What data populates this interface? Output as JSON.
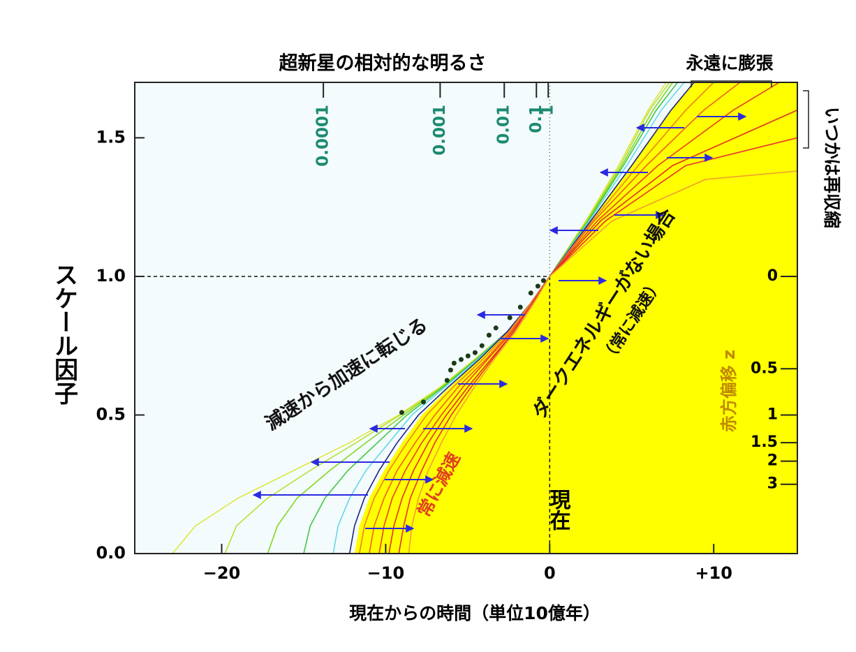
{
  "chart_data": {
    "type": "line",
    "title": "超新星の相対的な明るさ",
    "x_label": "現在からの時間（単位10億年）",
    "y_label": "スケール因子",
    "y2_label": "赤方偏移 z",
    "xlim": [
      -25.3,
      15.1
    ],
    "ylim": [
      0,
      1.7
    ],
    "xticks": [
      {
        "value": -20,
        "label": "−20"
      },
      {
        "value": -10,
        "label": "−10"
      },
      0,
      {
        "value": 10,
        "label": "+10"
      }
    ],
    "yticks": [
      {
        "value": 0,
        "label": "0.0"
      },
      0.5,
      {
        "value": 1,
        "label": "1.0"
      },
      1.5
    ],
    "y2ticks": [
      0,
      0.5,
      1,
      1.5,
      2,
      3
    ],
    "y2_mapping": "scale_factor_from_redshift",
    "top_ticks": [
      {
        "value": -13.8,
        "label": "0.0001"
      },
      {
        "value": -6.68,
        "label": "0.001"
      },
      {
        "value": -2.77,
        "label": "0.01"
      },
      {
        "value": -0.81,
        "label": "0.1"
      },
      {
        "value": -0.09,
        "label": "1"
      }
    ],
    "top_tick_color": "#1a8a70",
    "reference": {
      "x": 0,
      "y": 1
    },
    "shaded": {
      "color": "#ffff00",
      "x": [
        -11.9,
        -11.6,
        -11.0,
        -10.1,
        -9.0,
        -7.8,
        -6.1,
        -4.3,
        -2.6,
        -1.2,
        0,
        2.5,
        5.0,
        7.4,
        8.8
      ],
      "values": [
        0,
        0.1,
        0.2,
        0.3,
        0.4,
        0.5,
        0.6,
        0.7,
        0.8,
        0.9,
        1,
        1.2,
        1.4,
        1.6,
        1.7
      ]
    },
    "series": [
      {
        "color": "#dde840",
        "x": [
          -23.0,
          -21.6,
          -19.0,
          -15.6,
          -12.2,
          -9.2,
          -6.7,
          -4.6,
          -2.6,
          -1.2,
          0,
          2.2,
          4.2,
          6.0,
          7.1
        ],
        "values": [
          0,
          0.1,
          0.2,
          0.3,
          0.4,
          0.5,
          0.6,
          0.7,
          0.8,
          0.9,
          1,
          1.2,
          1.4,
          1.6,
          1.7
        ]
      },
      {
        "color": "#b8e030",
        "x": [
          -19.8,
          -19.1,
          -17.2,
          -14.6,
          -11.8,
          -9.1,
          -6.6,
          -4.5,
          -2.6,
          -1.2,
          0,
          2.25,
          4.3,
          6.1,
          7.3
        ],
        "values": [
          0,
          0.1,
          0.2,
          0.3,
          0.4,
          0.5,
          0.6,
          0.7,
          0.8,
          0.9,
          1,
          1.2,
          1.4,
          1.6,
          1.7
        ]
      },
      {
        "color": "#80d820",
        "x": [
          -17.2,
          -16.6,
          -15.4,
          -13.4,
          -11.2,
          -8.9,
          -6.6,
          -4.5,
          -2.6,
          -1.2,
          0,
          2.3,
          4.4,
          6.3,
          7.5
        ],
        "values": [
          0,
          0.1,
          0.2,
          0.3,
          0.4,
          0.5,
          0.6,
          0.7,
          0.8,
          0.9,
          1,
          1.2,
          1.4,
          1.6,
          1.7
        ]
      },
      {
        "color": "#40c840",
        "x": [
          -15.0,
          -14.6,
          -13.7,
          -12.3,
          -10.5,
          -8.7,
          -6.5,
          -4.5,
          -2.6,
          -1.2,
          0,
          2.35,
          4.5,
          6.5,
          7.8
        ],
        "values": [
          0,
          0.1,
          0.2,
          0.3,
          0.4,
          0.5,
          0.6,
          0.7,
          0.8,
          0.9,
          1,
          1.2,
          1.4,
          1.6,
          1.7
        ]
      },
      {
        "color": "#60d8e8",
        "x": [
          -13.2,
          -12.9,
          -12.2,
          -11.2,
          -9.8,
          -8.4,
          -6.4,
          -4.4,
          -2.6,
          -1.2,
          0,
          2.4,
          4.7,
          6.8,
          8.2
        ],
        "values": [
          0,
          0.1,
          0.2,
          0.3,
          0.4,
          0.5,
          0.6,
          0.7,
          0.8,
          0.9,
          1,
          1.2,
          1.4,
          1.6,
          1.7
        ]
      },
      {
        "color": "#202080",
        "x": [
          -12.2,
          -11.9,
          -11.3,
          -10.4,
          -9.3,
          -8.0,
          -6.2,
          -4.3,
          -2.6,
          -1.2,
          0,
          2.5,
          5.0,
          7.4,
          8.8
        ],
        "values": [
          0,
          0.1,
          0.2,
          0.3,
          0.4,
          0.5,
          0.6,
          0.7,
          0.8,
          0.9,
          1,
          1.2,
          1.4,
          1.6,
          1.7
        ]
      },
      {
        "color": "#f08020",
        "x": [
          -11.6,
          -11.3,
          -10.7,
          -9.8,
          -8.7,
          -7.5,
          -5.9,
          -4.1,
          -2.5,
          -1.2,
          0,
          2.6,
          5.4,
          8.3,
          10.0
        ],
        "values": [
          0,
          0.1,
          0.2,
          0.3,
          0.4,
          0.5,
          0.6,
          0.7,
          0.8,
          0.9,
          1,
          1.2,
          1.4,
          1.6,
          1.7
        ]
      },
      {
        "color": "#f06020",
        "x": [
          -11.0,
          -10.7,
          -10.1,
          -9.3,
          -8.2,
          -7.0,
          -5.6,
          -3.9,
          -2.4,
          -1.1,
          0,
          2.7,
          5.9,
          9.4,
          11.6
        ],
        "values": [
          0,
          0.1,
          0.2,
          0.3,
          0.4,
          0.5,
          0.6,
          0.7,
          0.8,
          0.9,
          1,
          1.2,
          1.4,
          1.6,
          1.7
        ]
      },
      {
        "color": "#e84020",
        "x": [
          -10.4,
          -10.1,
          -9.6,
          -8.8,
          -7.8,
          -6.6,
          -5.3,
          -3.8,
          -2.3,
          -1.1,
          0,
          2.9,
          6.6,
          11.2,
          14.0
        ],
        "values": [
          0,
          0.1,
          0.2,
          0.3,
          0.4,
          0.5,
          0.6,
          0.7,
          0.8,
          0.9,
          1,
          1.2,
          1.4,
          1.6,
          1.7
        ]
      },
      {
        "color": "#e03020",
        "x": [
          -9.8,
          -9.5,
          -9.0,
          -8.3,
          -7.4,
          -6.3,
          -5.0,
          -3.6,
          -2.2,
          -1.1,
          0,
          3.1,
          7.5,
          15.1
        ],
        "values": [
          0,
          0.1,
          0.2,
          0.3,
          0.4,
          0.5,
          0.6,
          0.7,
          0.8,
          0.9,
          1,
          1.2,
          1.4,
          1.6
        ]
      },
      {
        "color": "#e83030",
        "x": [
          -9.2,
          -8.9,
          -8.5,
          -7.8,
          -7.0,
          -6.0,
          -4.8,
          -3.5,
          -2.2,
          -1.1,
          0,
          3.4,
          8.3,
          15.1
        ],
        "values": [
          0,
          0.1,
          0.2,
          0.3,
          0.4,
          0.5,
          0.6,
          0.7,
          0.8,
          0.9,
          1,
          1.2,
          1.4,
          1.5
        ]
      },
      {
        "color": "#f0a030",
        "x": [
          -8.6,
          -8.4,
          -8.0,
          -7.4,
          -6.6,
          -5.7,
          -4.6,
          -3.4,
          -2.1,
          -1.0,
          0,
          3.8,
          9.5,
          15.1
        ],
        "values": [
          0,
          0.1,
          0.2,
          0.3,
          0.4,
          0.5,
          0.6,
          0.7,
          0.8,
          0.9,
          1,
          1.2,
          1.35,
          1.38
        ]
      }
    ],
    "supernovae": {
      "color": "#1a3a1a",
      "x": [
        -9.02,
        -7.7,
        -6.26,
        -6.04,
        -5.83,
        -5.4,
        -4.98,
        -4.55,
        -4.13,
        -3.7,
        -3.28,
        -2.43,
        -1.79,
        -1.15,
        -0.72,
        -0.38
      ],
      "values": [
        0.509,
        0.547,
        0.625,
        0.662,
        0.687,
        0.7,
        0.713,
        0.725,
        0.75,
        0.788,
        0.814,
        0.851,
        0.889,
        0.94,
        0.965,
        0.985
      ]
    },
    "annotations": {
      "forever": "永遠に膨張",
      "recollapse": "いつかは再収縮",
      "transition": "減速から加速に転じる",
      "no_dark_energy": "ダークエネルギーがない場合",
      "always_decel_paren": "（常に減速）",
      "always_decel": "常に減速",
      "now": "現在"
    }
  }
}
